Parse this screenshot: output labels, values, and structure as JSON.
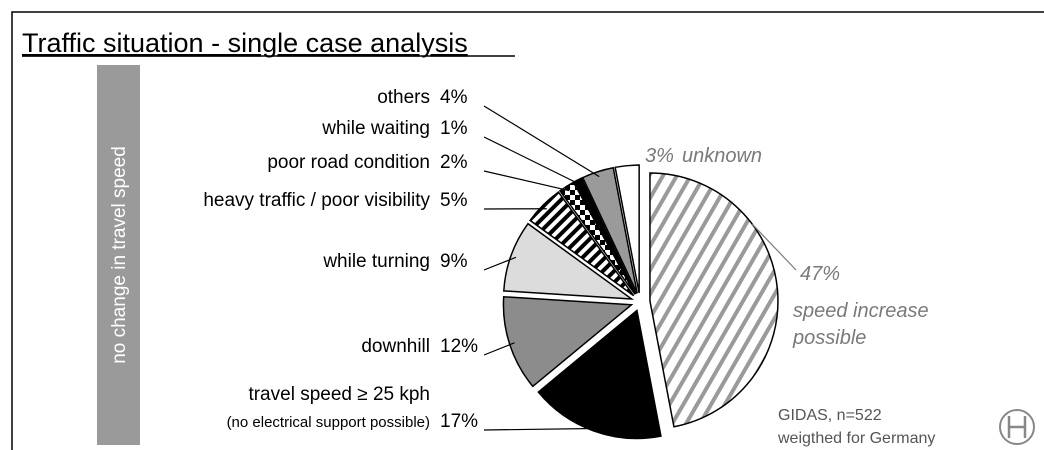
{
  "page_title": "Traffic situation - single case analysis",
  "side_label": "no change in travel speed",
  "source": [
    "GIDAS, n=522",
    "weigthed for Germany"
  ],
  "chart_data": {
    "type": "pie",
    "categories": [
      [
        "speed increase",
        "possible"
      ],
      [
        "travel speed ≥ 25 kph",
        "(no electrical support possible)"
      ],
      "downhill",
      "while turning",
      "heavy traffic / poor visibility",
      "poor road condition",
      "while waiting",
      "others",
      "unknown"
    ],
    "values": [
      47,
      17,
      12,
      9,
      5,
      2,
      1,
      4,
      3
    ],
    "value_labels": [
      "47%",
      "17%",
      "12%",
      "9%",
      "5%",
      "2%",
      "1%",
      "4%",
      "3%"
    ],
    "colors": [
      "#ffffff",
      "#000000",
      "#8c8c8c",
      "#dcdcdc",
      "#ffffff",
      "#ffffff",
      "#000000",
      "#9a9a9a",
      "#ffffff"
    ],
    "patterns": [
      "diagonal-hatch",
      null,
      null,
      null,
      "stripes",
      "checker",
      null,
      null,
      null
    ]
  }
}
